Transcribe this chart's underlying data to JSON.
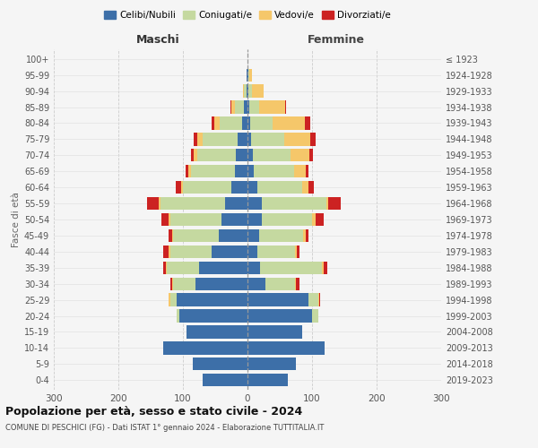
{
  "age_groups": [
    "0-4",
    "5-9",
    "10-14",
    "15-19",
    "20-24",
    "25-29",
    "30-34",
    "35-39",
    "40-44",
    "45-49",
    "50-54",
    "55-59",
    "60-64",
    "65-69",
    "70-74",
    "75-79",
    "80-84",
    "85-89",
    "90-94",
    "95-99",
    "100+"
  ],
  "birth_years": [
    "2019-2023",
    "2014-2018",
    "2009-2013",
    "2004-2008",
    "1999-2003",
    "1994-1998",
    "1989-1993",
    "1984-1988",
    "1979-1983",
    "1974-1978",
    "1969-1973",
    "1964-1968",
    "1959-1963",
    "1954-1958",
    "1949-1953",
    "1944-1948",
    "1939-1943",
    "1934-1938",
    "1929-1933",
    "1924-1928",
    "≤ 1923"
  ],
  "maschi": {
    "celibi": [
      70,
      85,
      130,
      95,
      105,
      110,
      80,
      75,
      55,
      45,
      40,
      35,
      25,
      20,
      18,
      15,
      8,
      5,
      2,
      1,
      0
    ],
    "coniugati": [
      0,
      0,
      0,
      0,
      5,
      10,
      35,
      50,
      65,
      70,
      80,
      100,
      75,
      68,
      60,
      55,
      35,
      15,
      3,
      1,
      0
    ],
    "vedovi": [
      0,
      0,
      0,
      0,
      0,
      2,
      1,
      2,
      2,
      2,
      2,
      2,
      3,
      4,
      5,
      8,
      8,
      5,
      2,
      0,
      0
    ],
    "divorziati": [
      0,
      0,
      0,
      0,
      0,
      0,
      3,
      4,
      8,
      5,
      12,
      18,
      8,
      4,
      5,
      6,
      5,
      2,
      0,
      0,
      0
    ]
  },
  "femmine": {
    "nubili": [
      62,
      75,
      120,
      85,
      100,
      95,
      28,
      20,
      15,
      18,
      22,
      22,
      15,
      10,
      8,
      5,
      4,
      3,
      2,
      1,
      0
    ],
    "coniugate": [
      0,
      0,
      0,
      0,
      10,
      15,
      45,
      95,
      58,
      68,
      78,
      100,
      70,
      62,
      58,
      52,
      35,
      15,
      5,
      2,
      0
    ],
    "vedove": [
      0,
      0,
      0,
      0,
      0,
      1,
      2,
      3,
      3,
      4,
      6,
      3,
      10,
      18,
      30,
      40,
      50,
      40,
      18,
      4,
      0
    ],
    "divorziate": [
      0,
      0,
      0,
      0,
      0,
      2,
      5,
      5,
      5,
      5,
      12,
      20,
      8,
      4,
      5,
      8,
      8,
      2,
      0,
      0,
      0
    ]
  },
  "colors": {
    "celibi": "#3d6fa8",
    "coniugati": "#c5d9a0",
    "vedovi": "#f5c76a",
    "divorziati": "#cc2222"
  },
  "legend_labels": [
    "Celibi/Nubili",
    "Coniugati/e",
    "Vedovi/e",
    "Divorziati/e"
  ],
  "title": "Popolazione per età, sesso e stato civile - 2024",
  "subtitle": "COMUNE DI PESCHICI (FG) - Dati ISTAT 1° gennaio 2024 - Elaborazione TUTTITALIA.IT",
  "xlabel_left": "Maschi",
  "xlabel_right": "Femmine",
  "ylabel_left": "Fasce di età",
  "xlim": 300,
  "background_color": "#f5f5f5"
}
